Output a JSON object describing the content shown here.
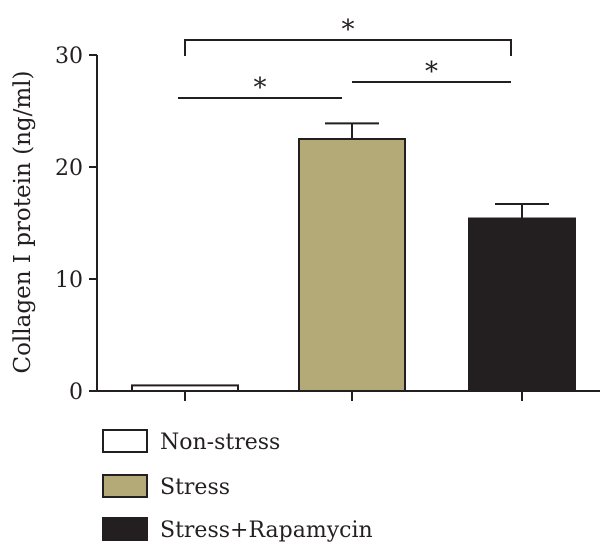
{
  "chart_data": {
    "type": "bar",
    "title": "",
    "xlabel": "",
    "ylabel": "Collagen I protein (ng/ml)",
    "ylim": [
      0,
      30
    ],
    "yticks": [
      0,
      10,
      20,
      30
    ],
    "grid": false,
    "legend_position": "bottom-left",
    "categories": [
      "Non-stress",
      "Stress",
      "Stress+Rapamycin"
    ],
    "values": [
      0.5,
      22.5,
      15.4
    ],
    "errors": [
      0,
      1.4,
      1.3
    ],
    "colors": [
      "#ffffff",
      "#b4aa78",
      "#231f20"
    ],
    "legend": [
      {
        "label": "Non-stress",
        "color": "#ffffff"
      },
      {
        "label": "Stress",
        "color": "#b4aa78"
      },
      {
        "label": "Stress+Rapamycin",
        "color": "#231f20"
      }
    ],
    "significance": [
      {
        "from": 0,
        "to": 1,
        "label": "*"
      },
      {
        "from": 1,
        "to": 2,
        "label": "*"
      },
      {
        "from": 0,
        "to": 2,
        "label": "*"
      }
    ]
  }
}
